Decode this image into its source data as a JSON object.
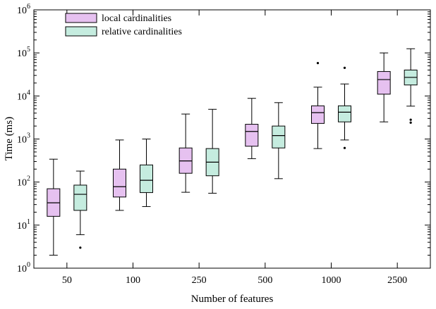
{
  "chart_data": {
    "type": "box",
    "title": "",
    "xlabel": "Number of features",
    "ylabel": "Time (ms)",
    "yscale": "log",
    "ylim": [
      1,
      1000000
    ],
    "y_ticks": [
      {
        "base": "10",
        "exp": "0"
      },
      {
        "base": "10",
        "exp": "1"
      },
      {
        "base": "10",
        "exp": "2"
      },
      {
        "base": "10",
        "exp": "3"
      },
      {
        "base": "10",
        "exp": "4"
      },
      {
        "base": "10",
        "exp": "5"
      },
      {
        "base": "10",
        "exp": "6"
      }
    ],
    "categories": [
      "50",
      "100",
      "250",
      "500",
      "1000",
      "2500"
    ],
    "legend_position": "top-left",
    "series": [
      {
        "name": "local cardinalities",
        "color": "#e6c1f0",
        "boxes": [
          {
            "min": 2,
            "q1": 16,
            "median": 33,
            "q3": 70,
            "max": 340,
            "outliers": []
          },
          {
            "min": 22,
            "q1": 45,
            "median": 78,
            "q3": 200,
            "max": 950,
            "outliers": []
          },
          {
            "min": 58,
            "q1": 160,
            "median": 310,
            "q3": 620,
            "max": 3800,
            "outliers": []
          },
          {
            "min": 350,
            "q1": 680,
            "median": 1500,
            "q3": 2200,
            "max": 8800,
            "outliers": []
          },
          {
            "min": 600,
            "q1": 2300,
            "median": 4100,
            "q3": 5900,
            "max": 16000,
            "outliers": [
              58000
            ]
          },
          {
            "min": 2500,
            "q1": 11000,
            "median": 24000,
            "q3": 37000,
            "max": 100000,
            "outliers": []
          }
        ]
      },
      {
        "name": "relative cardinalities",
        "color": "#c5ecdf",
        "boxes": [
          {
            "min": 6,
            "q1": 22,
            "median": 52,
            "q3": 85,
            "max": 180,
            "outliers": [
              3
            ]
          },
          {
            "min": 27,
            "q1": 57,
            "median": 110,
            "q3": 250,
            "max": 1000,
            "outliers": []
          },
          {
            "min": 55,
            "q1": 140,
            "median": 290,
            "q3": 600,
            "max": 4900,
            "outliers": []
          },
          {
            "min": 120,
            "q1": 620,
            "median": 1200,
            "q3": 2000,
            "max": 7000,
            "outliers": []
          },
          {
            "min": 950,
            "q1": 2500,
            "median": 4200,
            "q3": 5900,
            "max": 19000,
            "outliers": [
              45000,
              620
            ]
          },
          {
            "min": 5800,
            "q1": 18000,
            "median": 27000,
            "q3": 40000,
            "max": 125000,
            "outliers": [
              2800,
              2400
            ]
          }
        ]
      }
    ]
  }
}
